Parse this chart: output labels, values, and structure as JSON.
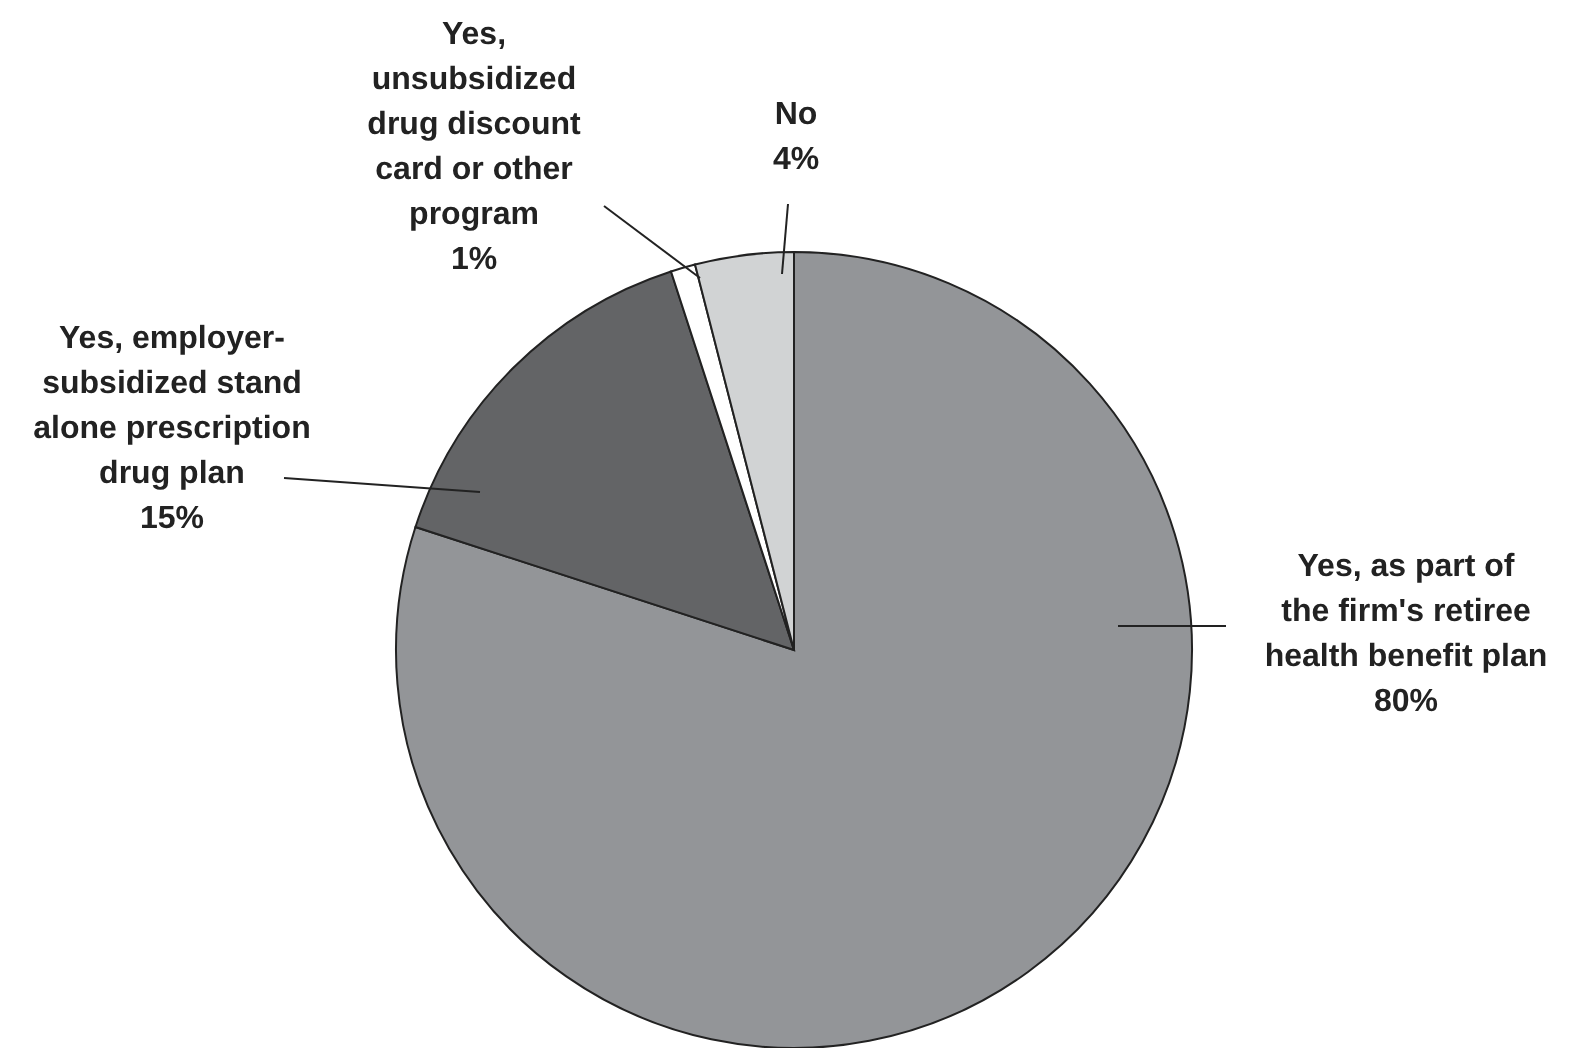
{
  "chart_data": {
    "type": "pie",
    "categories": [
      "Yes, as part of the firm's retiree health benefit plan",
      "Yes, employer-subsidized stand alone prescription drug plan",
      "Yes, unsubsidized drug discount card or other program",
      "No"
    ],
    "values": [
      80,
      15,
      1,
      4
    ],
    "colors": [
      "#939598",
      "#636466",
      "#ffffff",
      "#d1d3d4"
    ],
    "value_labels": [
      "80%",
      "15%",
      "1%",
      "4%"
    ]
  }
}
